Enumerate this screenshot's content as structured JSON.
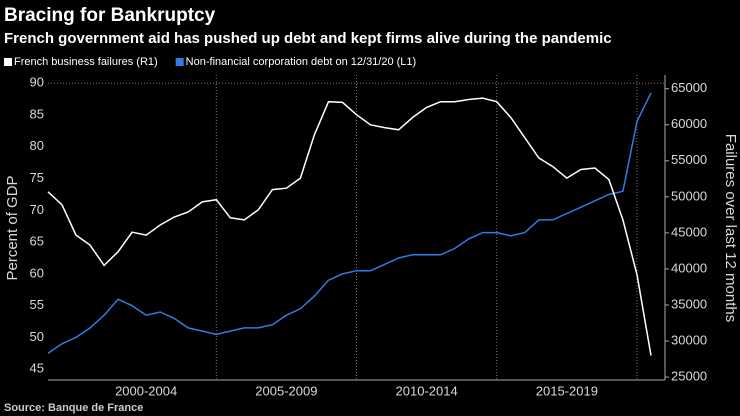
{
  "chart_data": {
    "type": "line",
    "title": "Bracing for Bankruptcy",
    "subtitle": "French government aid has pushed up debt and kept firms alive during the pandemic",
    "source": "Source: Banque de France",
    "ylabel": "Percent of GDP",
    "y2label": "Failures over last 12 months",
    "x": [
      1999,
      1999.5,
      2000,
      2000.5,
      2001,
      2001.5,
      2002,
      2002.5,
      2003,
      2003.5,
      2004,
      2004.5,
      2005,
      2005.5,
      2006,
      2006.5,
      2007,
      2007.5,
      2008,
      2008.5,
      2009,
      2009.5,
      2010,
      2010.5,
      2011,
      2011.5,
      2012,
      2012.5,
      2013,
      2013.5,
      2014,
      2014.5,
      2015,
      2015.5,
      2016,
      2016.5,
      2017,
      2017.5,
      2018,
      2018.5,
      2019,
      2019.5,
      2020,
      2020.5
    ],
    "series": [
      {
        "name": "French business failures (R1)",
        "color": "#ffffff",
        "axis": "y2",
        "values": [
          50700,
          48900,
          44700,
          43300,
          40500,
          42400,
          45100,
          44700,
          46100,
          47200,
          47900,
          49300,
          49600,
          47100,
          46800,
          48200,
          51000,
          51200,
          52600,
          58600,
          63200,
          63100,
          61400,
          60000,
          59600,
          59300,
          61000,
          62400,
          63200,
          63200,
          63500,
          63700,
          63200,
          61000,
          58200,
          55400,
          54200,
          52600,
          53800,
          54000,
          52400,
          46800,
          39200,
          28000
        ]
      },
      {
        "name": "Non-financial corporation debt on 12/31/20 (L1)",
        "color": "#2e7de1",
        "axis": "y",
        "values": [
          47.5,
          49,
          50,
          51.5,
          53.5,
          56,
          55,
          53.5,
          54,
          53,
          51.5,
          51,
          50.5,
          51,
          51.5,
          51.5,
          52,
          53.5,
          54.5,
          56.5,
          59,
          60,
          60.5,
          60.5,
          61.5,
          62.5,
          63,
          63,
          63,
          64,
          65.5,
          66.5,
          66.5,
          66,
          66.5,
          68.5,
          68.5,
          69.5,
          70.5,
          71.5,
          72.5,
          73,
          84,
          88.5
        ]
      }
    ],
    "xlim": [
      1999,
      2021
    ],
    "xticks": [
      {
        "value": 2002.5,
        "label": "2000-2004"
      },
      {
        "value": 2007.5,
        "label": "2005-2009"
      },
      {
        "value": 2012.5,
        "label": "2010-2014"
      },
      {
        "value": 2017.5,
        "label": "2015-2019"
      }
    ],
    "xgrid": [
      2005,
      2010,
      2015,
      2020
    ],
    "ylim": [
      43.3,
      91.3
    ],
    "yticks": [
      45,
      50,
      55,
      60,
      65,
      70,
      75,
      80,
      85,
      90
    ],
    "y2lim": [
      24600,
      66900
    ],
    "y2ticks": [
      25000,
      30000,
      35000,
      40000,
      45000,
      50000,
      55000,
      60000,
      65000
    ],
    "grid": true
  }
}
